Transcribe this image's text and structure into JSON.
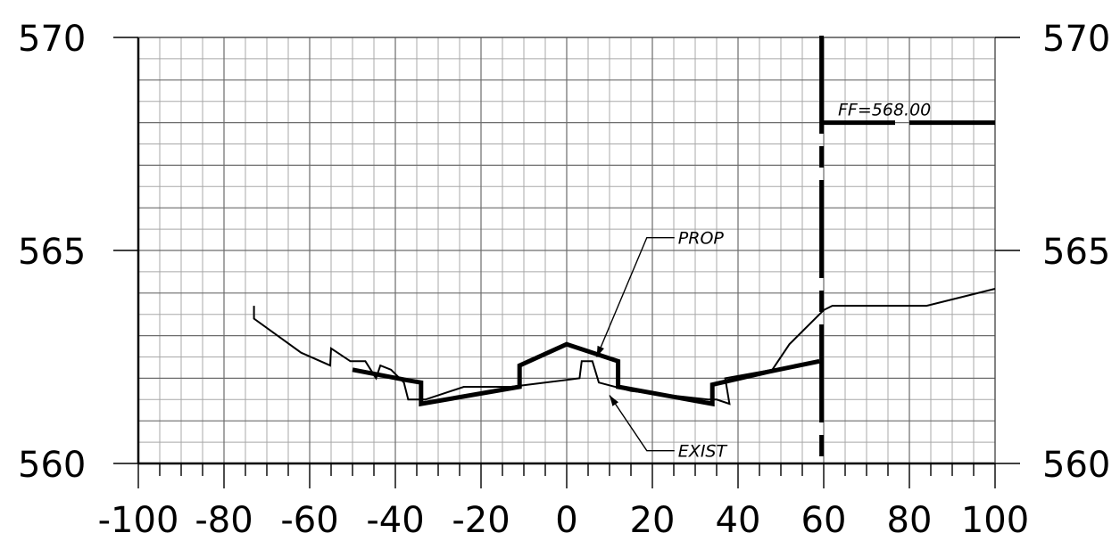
{
  "chart_data": {
    "type": "line",
    "xlim": [
      -100,
      100
    ],
    "ylim": [
      560,
      570
    ],
    "x_ticks": [
      -100,
      -80,
      -60,
      -40,
      -20,
      0,
      20,
      40,
      60,
      80,
      100
    ],
    "x_tick_labels": [
      "-100",
      "-80",
      "-60",
      "-40",
      "-20",
      "0",
      "20",
      "40",
      "60",
      "80",
      "100"
    ],
    "y_ticks": [
      560,
      565,
      570
    ],
    "y_tick_labels": [
      "560",
      "565",
      "570"
    ],
    "grid": true,
    "series": [
      {
        "name": "EXIST",
        "line_weight": "thin",
        "points": [
          [
            -73,
            563.7
          ],
          [
            -73,
            563.4
          ],
          [
            -62,
            562.6
          ],
          [
            -55.2,
            562.3
          ],
          [
            -55,
            562.7
          ],
          [
            -50.5,
            562.4
          ],
          [
            -47,
            562.4
          ],
          [
            -44.5,
            562.0
          ],
          [
            -43.5,
            562.3
          ],
          [
            -41,
            562.2
          ],
          [
            -38,
            561.9
          ],
          [
            -37,
            561.5
          ],
          [
            -33,
            561.5
          ],
          [
            -24,
            561.8
          ],
          [
            -13,
            561.8
          ],
          [
            3,
            562.0
          ],
          [
            3.5,
            562.4
          ],
          [
            6,
            562.4
          ],
          [
            7.5,
            561.9
          ],
          [
            15,
            561.7
          ],
          [
            33,
            561.5
          ],
          [
            35,
            561.5
          ],
          [
            38,
            561.4
          ],
          [
            37,
            562.0
          ],
          [
            48,
            562.2
          ],
          [
            52,
            562.8
          ],
          [
            60,
            563.6
          ],
          [
            62,
            563.7
          ],
          [
            84,
            563.7
          ],
          [
            100,
            564.1
          ]
        ]
      },
      {
        "name": "PROP",
        "line_weight": "bold",
        "points": [
          [
            -50,
            562.2
          ],
          [
            -37,
            561.95
          ],
          [
            -34,
            561.9
          ],
          [
            -34,
            561.4
          ],
          [
            -11,
            561.8
          ],
          [
            -11,
            562.3
          ],
          [
            0,
            562.8
          ],
          [
            12,
            562.4
          ],
          [
            12,
            561.8
          ],
          [
            34,
            561.4
          ],
          [
            34,
            561.85
          ],
          [
            47,
            562.15
          ],
          [
            59,
            562.4
          ]
        ]
      }
    ],
    "wall_x": 59.5,
    "finish_floor": {
      "label": "FF=568.00",
      "y": 568.0,
      "x_start": 60,
      "x_end": 100
    },
    "annotations": [
      {
        "text": "PROP",
        "target": [
          7,
          562.5
        ],
        "label_at": [
          26,
          565.3
        ]
      },
      {
        "text": "EXIST",
        "target": [
          10,
          561.6
        ],
        "label_at": [
          26,
          560.3
        ]
      }
    ]
  }
}
